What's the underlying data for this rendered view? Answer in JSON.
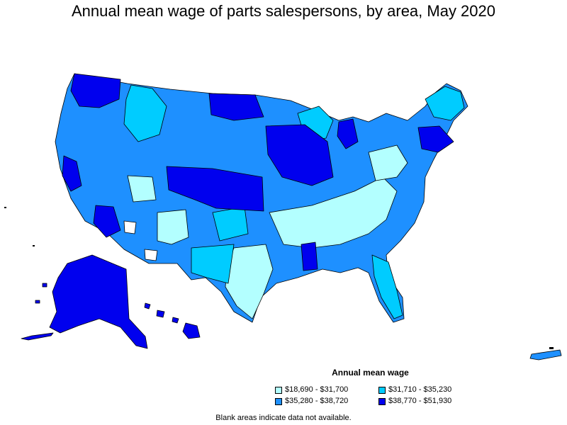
{
  "title": "Annual mean wage of parts salespersons, by area, May 2020",
  "legend": {
    "title": "Annual mean wage",
    "items": [
      {
        "label": "$18,690 - $31,700",
        "color": "#b3ffff"
      },
      {
        "label": "$31,710 - $35,230",
        "color": "#00ccff"
      },
      {
        "label": "$35,280 - $38,720",
        "color": "#1e90ff"
      },
      {
        "label": "$38,770 - $51,930",
        "color": "#0000ee"
      }
    ]
  },
  "note": "Blank areas indicate data not available.",
  "colors": {
    "lowest": "#b3ffff",
    "low": "#00ccff",
    "high": "#1e90ff",
    "highest": "#0000ee",
    "blank": "#ffffff",
    "border": "#000000"
  }
}
